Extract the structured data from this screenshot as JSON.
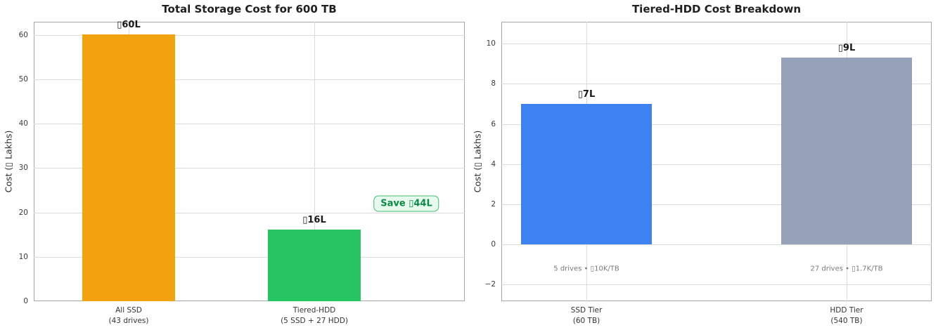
{
  "figure": {
    "background": "#ffffff",
    "style": {
      "grid_color": "#dcdcdc",
      "spine_color": "#a6a6a6",
      "tick_color": "#3b3b3b",
      "title_color": "#1f1f1f",
      "note_color": "#7a7a7a"
    }
  },
  "chart_data": [
    {
      "type": "bar",
      "title": "Total Storage Cost for 600 TB",
      "ylabel": "Cost (▯ Lakhs)",
      "categories": [
        [
          "All SSD",
          "(43 drives)"
        ],
        [
          "Tiered-HDD",
          "(5 SSD + 27 HDD)"
        ]
      ],
      "values": [
        60.2,
        16.2
      ],
      "bar_labels": [
        "▯60L",
        "▯16L"
      ],
      "bar_colors": [
        "#f2a20e",
        "#27c462"
      ],
      "yticks": [
        0,
        10,
        20,
        30,
        40,
        50,
        60
      ],
      "ylim": [
        0,
        63
      ],
      "grid": true,
      "legend": null,
      "annotation": {
        "label": "Save ▯44L",
        "text_color": "#0c8a45",
        "bg_color": "#e8f9ee",
        "border_color": "#3fbe72"
      }
    },
    {
      "type": "bar",
      "title": "Tiered-HDD Cost Breakdown",
      "ylabel": "Cost (▯ Lakhs)",
      "categories": [
        [
          "SSD Tier",
          "(60 TB)"
        ],
        [
          "HDD Tier",
          "(540 TB)"
        ]
      ],
      "values": [
        7.0,
        9.3
      ],
      "bar_labels": [
        "▯7L",
        "▯9L"
      ],
      "bar_colors": [
        "#3d82f0",
        "#95a2b7"
      ],
      "yticks": [
        -2,
        0,
        2,
        4,
        6,
        8,
        10
      ],
      "ylim": [
        -2.85,
        11.1
      ],
      "grid": true,
      "legend": null,
      "bar_notes": [
        "5 drives • ▯10K/TB",
        "27 drives • ▯1.7K/TB"
      ],
      "bar_notes_y": -1.25
    }
  ]
}
